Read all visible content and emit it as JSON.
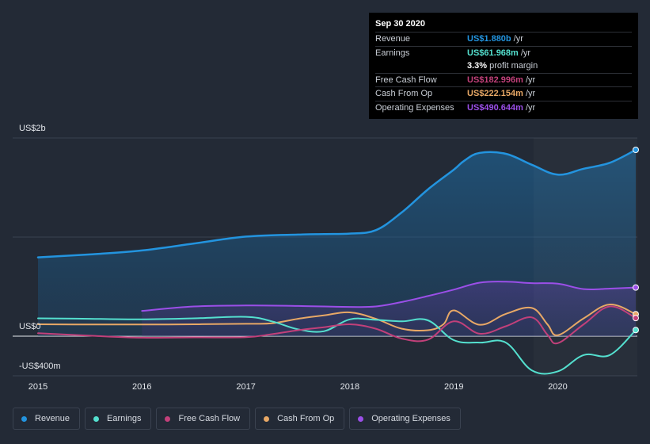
{
  "tooltip": {
    "date": "Sep 30 2020",
    "rows": [
      {
        "label": "Revenue",
        "value": "US$1.880b",
        "unit": "/yr",
        "color": "#2394df"
      },
      {
        "label": "Earnings",
        "value": "US$61.968m",
        "unit": "/yr",
        "color": "#54e0cf"
      },
      {
        "label": "",
        "value": "3.3%",
        "unit": "profit margin",
        "color": "#ffffff"
      },
      {
        "label": "Free Cash Flow",
        "value": "US$182.996m",
        "unit": "/yr",
        "color": "#c2407a"
      },
      {
        "label": "Cash From Op",
        "value": "US$222.154m",
        "unit": "/yr",
        "color": "#e8a866"
      },
      {
        "label": "Operating Expenses",
        "value": "US$490.644m",
        "unit": "/yr",
        "color": "#9b4fe8"
      }
    ]
  },
  "legend": [
    {
      "label": "Revenue",
      "color": "#2394df"
    },
    {
      "label": "Earnings",
      "color": "#54e0cf"
    },
    {
      "label": "Free Cash Flow",
      "color": "#c2407a"
    },
    {
      "label": "Cash From Op",
      "color": "#e8a866"
    },
    {
      "label": "Operating Expenses",
      "color": "#9b4fe8"
    }
  ],
  "chart_data": {
    "type": "area",
    "y_tick_labels": [
      "US$2b",
      "US$0",
      "-US$400m"
    ],
    "y_ticks": [
      2000,
      0,
      -400
    ],
    "ylim": [
      -400,
      2000
    ],
    "xlim": [
      2015.0,
      2020.75
    ],
    "x_tick_labels": [
      "2015",
      "2016",
      "2017",
      "2018",
      "2019",
      "2020"
    ],
    "x_ticks": [
      2015,
      2016,
      2017,
      2018,
      2019,
      2020
    ],
    "grid": true,
    "series": [
      {
        "name": "Revenue",
        "color": "#2394df",
        "fill": true,
        "x": [
          2015.0,
          2015.5,
          2016.0,
          2016.5,
          2017.0,
          2017.5,
          2017.75,
          2018.0,
          2018.25,
          2018.5,
          2018.75,
          2019.0,
          2019.1,
          2019.25,
          2019.5,
          2019.75,
          2020.0,
          2020.25,
          2020.5,
          2020.75
        ],
        "y": [
          795,
          825,
          865,
          935,
          1005,
          1025,
          1030,
          1035,
          1070,
          1250,
          1480,
          1680,
          1770,
          1850,
          1840,
          1730,
          1630,
          1690,
          1750,
          1880
        ]
      },
      {
        "name": "Operating Expenses",
        "color": "#9b4fe8",
        "fill": true,
        "x": [
          2016.0,
          2016.5,
          2017.0,
          2017.5,
          2018.0,
          2018.25,
          2018.5,
          2018.75,
          2019.0,
          2019.25,
          2019.5,
          2019.75,
          2020.0,
          2020.25,
          2020.5,
          2020.75
        ],
        "y": [
          255,
          300,
          310,
          305,
          295,
          300,
          345,
          405,
          470,
          540,
          550,
          535,
          530,
          475,
          480,
          491
        ]
      },
      {
        "name": "Cash From Op",
        "color": "#e8a866",
        "fill": false,
        "x": [
          2015.0,
          2015.5,
          2016.0,
          2016.5,
          2017.0,
          2017.25,
          2017.5,
          2017.75,
          2018.0,
          2018.25,
          2018.5,
          2018.75,
          2018.9,
          2019.0,
          2019.25,
          2019.5,
          2019.75,
          2019.9,
          2020.0,
          2020.25,
          2020.5,
          2020.75
        ],
        "y": [
          120,
          118,
          118,
          120,
          125,
          130,
          175,
          210,
          240,
          175,
          75,
          60,
          120,
          260,
          115,
          225,
          285,
          120,
          10,
          180,
          320,
          222
        ]
      },
      {
        "name": "Earnings",
        "color": "#54e0cf",
        "fill": false,
        "x": [
          2015.0,
          2015.5,
          2016.0,
          2016.5,
          2017.0,
          2017.25,
          2017.5,
          2017.75,
          2018.0,
          2018.25,
          2018.5,
          2018.75,
          2019.0,
          2019.25,
          2019.5,
          2019.75,
          2020.0,
          2020.25,
          2020.5,
          2020.75
        ],
        "y": [
          180,
          175,
          170,
          180,
          195,
          150,
          70,
          50,
          170,
          165,
          150,
          160,
          -40,
          -65,
          -65,
          -345,
          -355,
          -190,
          -190,
          62
        ]
      },
      {
        "name": "Free Cash Flow",
        "color": "#c2407a",
        "fill": false,
        "x": [
          2015.0,
          2015.5,
          2016.0,
          2016.5,
          2017.0,
          2017.25,
          2017.5,
          2017.75,
          2018.0,
          2018.25,
          2018.5,
          2018.75,
          2019.0,
          2019.25,
          2019.5,
          2019.75,
          2019.9,
          2020.0,
          2020.25,
          2020.5,
          2020.75
        ],
        "y": [
          30,
          5,
          -15,
          -12,
          -10,
          20,
          60,
          90,
          120,
          75,
          -25,
          -35,
          150,
          25,
          100,
          190,
          15,
          -70,
          120,
          300,
          183
        ]
      }
    ]
  }
}
